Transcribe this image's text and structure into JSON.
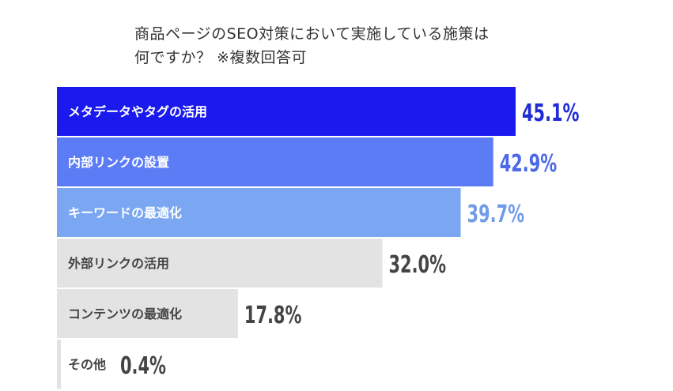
{
  "chart_data": {
    "type": "bar",
    "orientation": "horizontal",
    "title_lines": [
      "商品ページのSEO対策において実施している施策は",
      "何ですか？ ※複数回答可"
    ],
    "categories": [
      "メタデータやタグの活用",
      "内部リンクの設置",
      "キーワードの最適化",
      "外部リンクの活用",
      "コンテンツの最適化",
      "その他"
    ],
    "values": [
      45.1,
      42.9,
      39.7,
      32.0,
      17.8,
      0.4
    ],
    "value_labels": [
      "45.1%",
      "42.9%",
      "39.7%",
      "32.0%",
      "17.8%",
      "0.4%"
    ],
    "unit": "%",
    "xlim": [
      0,
      45.1
    ],
    "bar_colors": [
      "#1a1aee",
      "#5c7cf6",
      "#7aa6f2",
      "#e3e3e3",
      "#e3e3e3",
      "#e3e3e3"
    ],
    "label_colors": [
      "#ffffff",
      "#ffffff",
      "#ffffff",
      "#444444",
      "#444444",
      "#444444"
    ],
    "value_colors": [
      "#1f2bd6",
      "#4a68e8",
      "#6f9ce8",
      "#444444",
      "#444444",
      "#444444"
    ],
    "grid": false,
    "legend": "none"
  }
}
